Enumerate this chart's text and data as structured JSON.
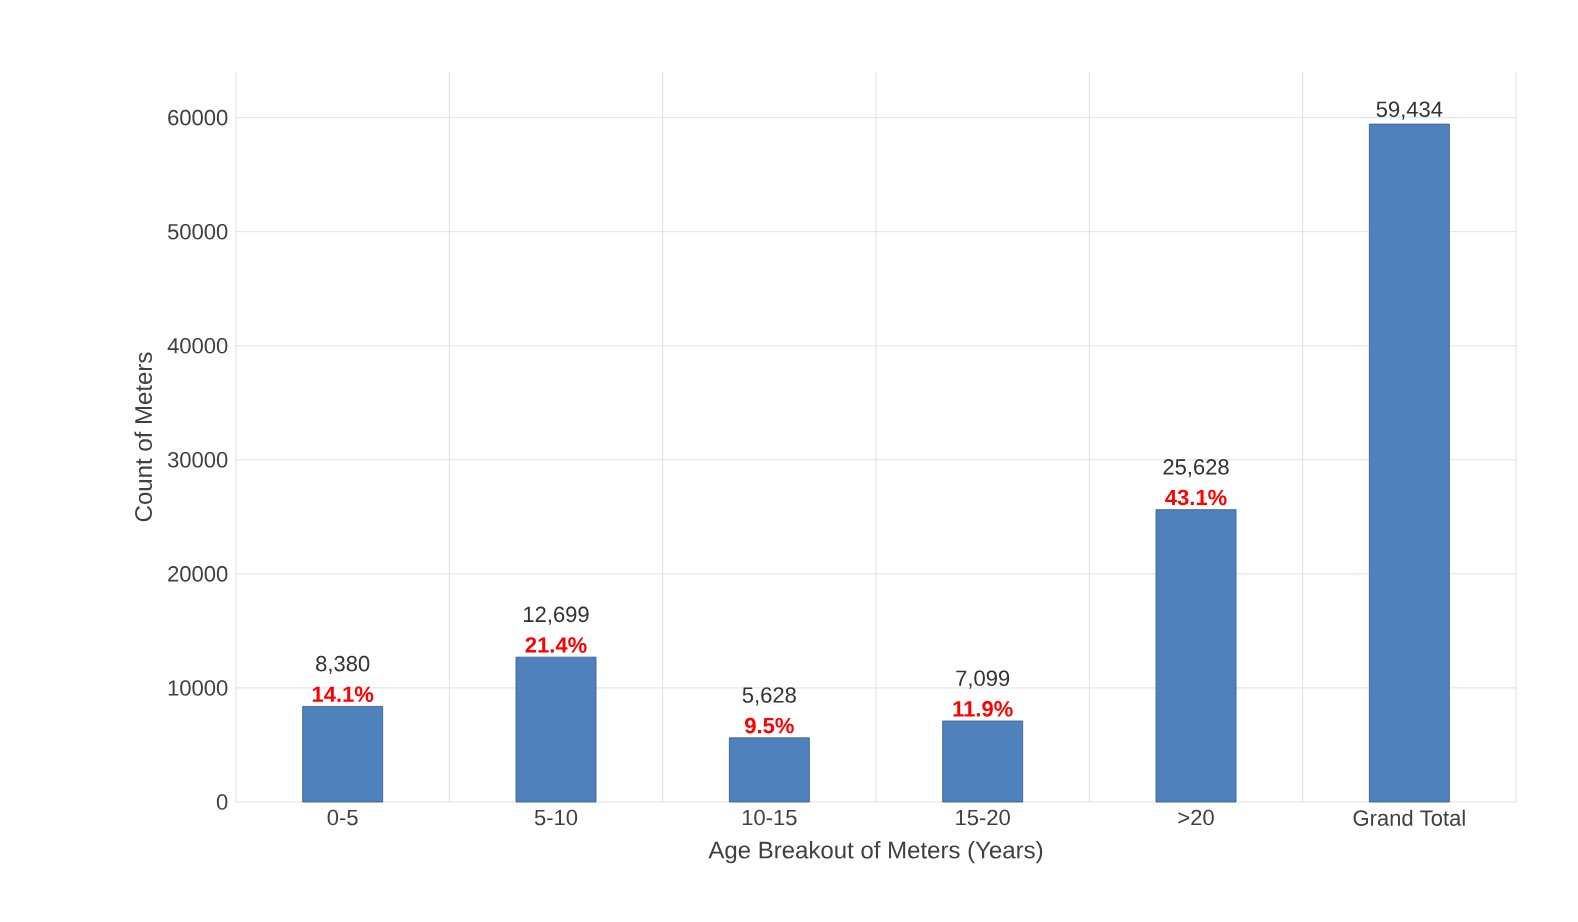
{
  "chart_data": {
    "type": "bar",
    "xlabel": "Age Breakout of Meters (Years)",
    "ylabel": "Count of Meters",
    "categories": [
      "0-5",
      "5-10",
      "10-15",
      "15-20",
      ">20",
      "Grand Total"
    ],
    "values": [
      8380,
      12699,
      5628,
      7099,
      25628,
      59434
    ],
    "value_labels": [
      "8,380",
      "12,699",
      "5,628",
      "7,099",
      "25,628",
      "59,434"
    ],
    "color": "#4f81bd",
    "ylim": [
      0,
      64000
    ],
    "yticks": [
      0,
      10000,
      20000,
      30000,
      40000,
      50000,
      60000
    ],
    "grid": true,
    "annotations": [
      {
        "text": "14.1%",
        "x": "0-5",
        "y": 8380
      },
      {
        "text": "21.4%",
        "x": "5-10",
        "y": 12699
      },
      {
        "text": "9.5%",
        "x": "10-15",
        "y": 5628
      },
      {
        "text": "11.9%",
        "x": "15-20",
        "y": 7099
      },
      {
        "text": "43.1%",
        "x": ">20",
        "y": 25628
      }
    ]
  }
}
